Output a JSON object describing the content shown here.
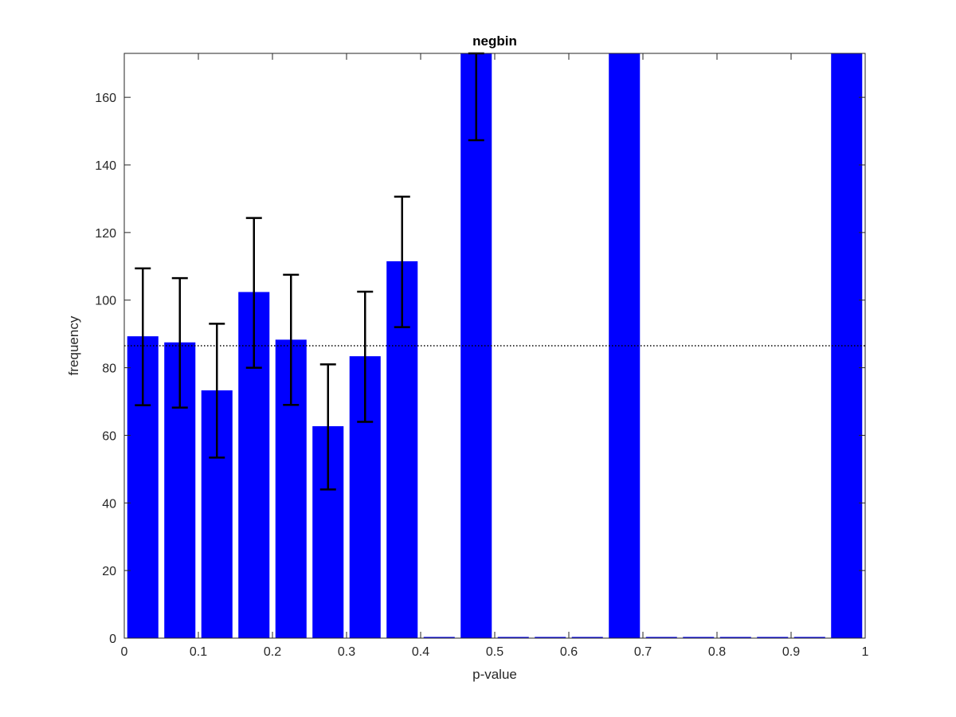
{
  "chart_data": {
    "type": "bar",
    "title": "negbin",
    "xlabel": "p-value",
    "ylabel": "frequency",
    "xlim": [
      0,
      1
    ],
    "ylim": [
      0,
      173
    ],
    "xticks": [
      "0",
      "0.1",
      "0.2",
      "0.3",
      "0.4",
      "0.5",
      "0.6",
      "0.7",
      "0.8",
      "0.9",
      "1"
    ],
    "yticks": [
      "0",
      "20",
      "40",
      "60",
      "80",
      "100",
      "120",
      "140",
      "160"
    ],
    "bin_width": 0.05,
    "bin_centers": [
      0.025,
      0.075,
      0.125,
      0.175,
      0.225,
      0.275,
      0.325,
      0.375,
      0.425,
      0.475,
      0.525,
      0.575,
      0.625,
      0.675,
      0.725,
      0.775,
      0.825,
      0.875,
      0.925,
      0.975
    ],
    "values": [
      89.3,
      87.5,
      73.3,
      102.4,
      88.3,
      62.7,
      83.4,
      111.5,
      0,
      173,
      0,
      0,
      0,
      173,
      0,
      0,
      0,
      0,
      0,
      173
    ],
    "error_low": [
      68.9,
      68.2,
      53.4,
      80.0,
      69.0,
      44.0,
      64.0,
      92.0,
      null,
      147.3,
      null,
      null,
      null,
      null,
      null,
      null,
      null,
      null,
      null,
      null
    ],
    "error_high": [
      109.4,
      106.5,
      93.0,
      124.3,
      107.5,
      81.0,
      102.5,
      130.6,
      null,
      173,
      null,
      null,
      null,
      null,
      null,
      null,
      null,
      null,
      null,
      null
    ],
    "reference_line": 86.5,
    "colors": {
      "bar": "#0000ff",
      "error": "#000000",
      "reference": "#000000",
      "axes": "#262626"
    },
    "grid": false,
    "legend": "none"
  }
}
